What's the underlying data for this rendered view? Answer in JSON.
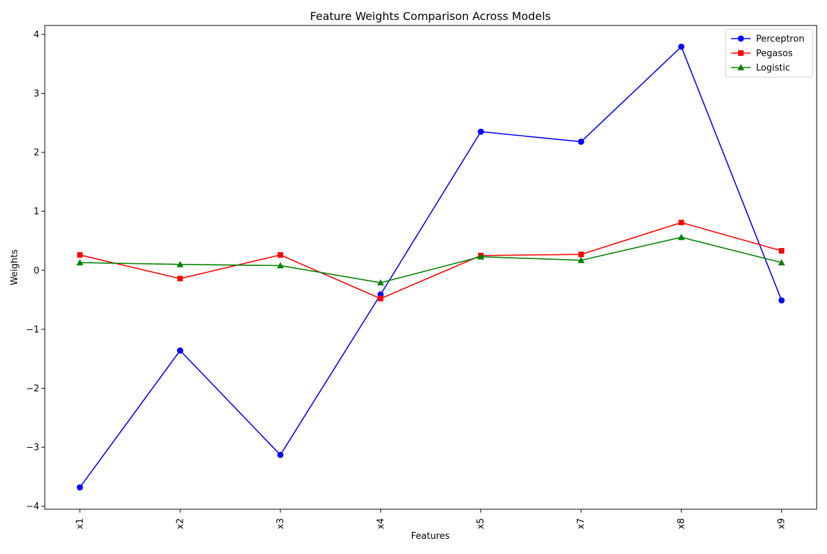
{
  "chart_data": {
    "type": "line",
    "title": "Feature Weights Comparison Across Models",
    "xlabel": "Features",
    "ylabel": "Weights",
    "categories": [
      "x1",
      "x2",
      "x3",
      "x4",
      "x5",
      "x7",
      "x8",
      "x9"
    ],
    "ylim": [
      -4.05,
      4.15
    ],
    "yticks": [
      -4,
      -3,
      -2,
      -1,
      0,
      1,
      2,
      3,
      4
    ],
    "ytick_labels": [
      "−4",
      "−3",
      "−2",
      "−1",
      "0",
      "1",
      "2",
      "3",
      "4"
    ],
    "grid": false,
    "legend_position": "top-right",
    "series": [
      {
        "name": "Perceptron",
        "color": "#0000ff",
        "marker": "circle",
        "values": [
          -3.68,
          -1.36,
          -3.13,
          -0.41,
          2.35,
          2.18,
          3.79,
          -0.51
        ]
      },
      {
        "name": "Pegasos",
        "color": "#ff0000",
        "marker": "square",
        "values": [
          0.26,
          -0.14,
          0.26,
          -0.48,
          0.25,
          0.27,
          0.81,
          0.33
        ]
      },
      {
        "name": "Logistic",
        "color": "#008000",
        "marker": "triangle",
        "values": [
          0.13,
          0.1,
          0.08,
          -0.21,
          0.23,
          0.17,
          0.56,
          0.13
        ]
      }
    ]
  }
}
